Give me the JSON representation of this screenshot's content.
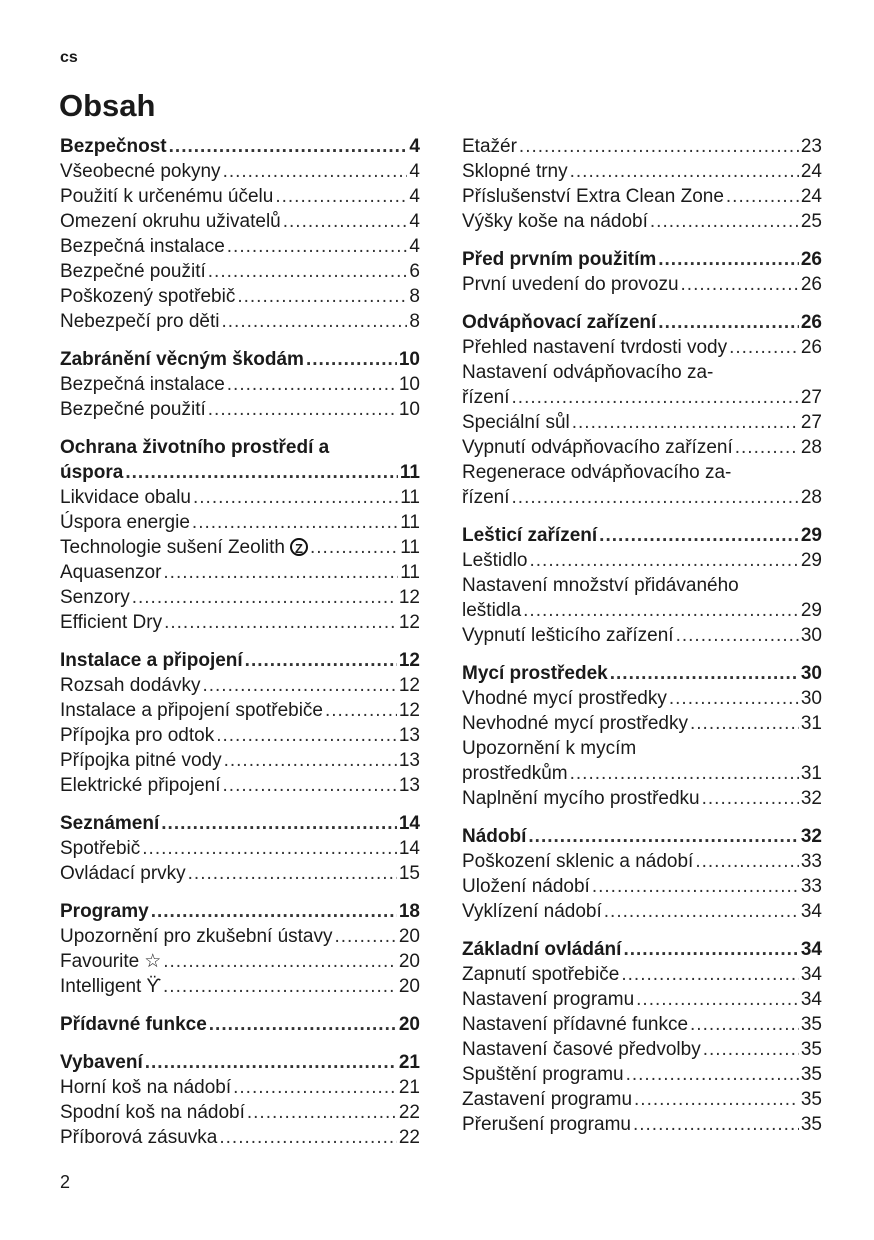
{
  "header": {
    "language": "cs",
    "title": "Obsah"
  },
  "footer": {
    "page_number": "2"
  },
  "columns": [
    {
      "groups": [
        {
          "heading": {
            "text": "Bezpečnost",
            "page": "4"
          },
          "items": [
            {
              "text": "Všeobecné pokyny",
              "page": "4"
            },
            {
              "text": "Použití k určenému účelu",
              "page": "4"
            },
            {
              "text": "Omezení okruhu uživatelů",
              "page": "4"
            },
            {
              "text": "Bezpečná instalace",
              "page": "4"
            },
            {
              "text": "Bezpečné použití",
              "page": "6"
            },
            {
              "text": "Poškozený spotřebič",
              "page": "8"
            },
            {
              "text": "Nebezpečí pro děti",
              "page": "8"
            }
          ]
        },
        {
          "heading": {
            "text": "Zabránění věcným škodám",
            "page": "10"
          },
          "items": [
            {
              "text": "Bezpečná instalace",
              "page": "10"
            },
            {
              "text": "Bezpečné použití",
              "page": "10"
            }
          ]
        },
        {
          "heading": {
            "text": "Ochrana životního prostředí a",
            "cont": "úspora",
            "page": "11"
          },
          "items": [
            {
              "text": "Likvidace obalu",
              "page": "11"
            },
            {
              "text": "Úspora energie",
              "page": "11"
            },
            {
              "text": "Technologie sušení Zeolith",
              "icon": "zeolith-icon",
              "page": "11"
            },
            {
              "text": "Aquasenzor",
              "page": "11"
            },
            {
              "text": "Senzory",
              "page": "12"
            },
            {
              "text": "Efficient Dry",
              "page": "12"
            }
          ]
        },
        {
          "heading": {
            "text": "Instalace a připojení",
            "page": "12"
          },
          "items": [
            {
              "text": "Rozsah dodávky",
              "page": "12"
            },
            {
              "text": "Instalace a připojení spotřebiče",
              "page": "12"
            },
            {
              "text": "Přípojka pro odtok",
              "page": "13"
            },
            {
              "text": "Přípojka pitné vody",
              "page": "13"
            },
            {
              "text": "Elektrické připojení",
              "page": "13"
            }
          ]
        },
        {
          "heading": {
            "text": "Seznámení",
            "page": "14"
          },
          "items": [
            {
              "text": "Spotřebič",
              "page": "14"
            },
            {
              "text": "Ovládací prvky",
              "page": "15"
            }
          ]
        },
        {
          "heading": {
            "text": "Programy",
            "page": "18"
          },
          "items": [
            {
              "text": "Upozornění pro zkušební ústavy",
              "page": "20"
            },
            {
              "text": "Favourite",
              "icon": "star-icon",
              "page": "20"
            },
            {
              "text": "Intelligent",
              "icon": "intelligent-icon",
              "page": "20"
            }
          ]
        },
        {
          "heading": {
            "text": "Přídavné funkce",
            "page": "20"
          },
          "items": []
        },
        {
          "heading": {
            "text": "Vybavení",
            "page": "21"
          },
          "items": [
            {
              "text": "Horní koš na nádobí",
              "page": "21"
            },
            {
              "text": "Spodní koš na nádobí",
              "page": "22"
            },
            {
              "text": "Příborová zásuvka",
              "page": "22"
            }
          ]
        }
      ]
    },
    {
      "groups": [
        {
          "items": [
            {
              "text": "Etažér",
              "page": "23"
            },
            {
              "text": "Sklopné trny",
              "page": "24"
            },
            {
              "text": "Příslušenství Extra Clean Zone",
              "page": "24"
            },
            {
              "text": "Výšky koše na nádobí",
              "page": "25"
            }
          ]
        },
        {
          "heading": {
            "text": "Před prvním použitím",
            "page": "26"
          },
          "items": [
            {
              "text": "První uvedení do provozu",
              "page": "26"
            }
          ]
        },
        {
          "heading": {
            "text": "Odvápňovací zařízení",
            "page": "26"
          },
          "items": [
            {
              "text": "Přehled nastavení tvrdosti vody",
              "page": "26"
            },
            {
              "text": "Nastavení odvápňovacího za-",
              "cont": "řízení",
              "page": "27"
            },
            {
              "text": "Speciální sůl",
              "page": "27"
            },
            {
              "text": "Vypnutí odvápňovacího zařízení",
              "page": "28"
            },
            {
              "text": "Regenerace odvápňovacího za-",
              "cont": "řízení",
              "page": "28"
            }
          ]
        },
        {
          "heading": {
            "text": "Lešticí zařízení",
            "page": "29"
          },
          "items": [
            {
              "text": "Leštidlo",
              "page": "29"
            },
            {
              "text": "Nastavení množství přidávaného",
              "cont": "leštidla",
              "page": "29"
            },
            {
              "text": "Vypnutí lešticího zařízení",
              "page": "30"
            }
          ]
        },
        {
          "heading": {
            "text": "Mycí prostředek",
            "page": "30"
          },
          "items": [
            {
              "text": "Vhodné mycí prostředky",
              "page": "30"
            },
            {
              "text": "Nevhodné mycí prostředky",
              "page": "31"
            },
            {
              "text": "Upozornění k mycím",
              "cont": "prostředkům",
              "page": "31"
            },
            {
              "text": "Naplnění mycího prostředku",
              "page": "32"
            }
          ]
        },
        {
          "heading": {
            "text": "Nádobí",
            "page": "32"
          },
          "items": [
            {
              "text": "Poškození sklenic a nádobí",
              "page": "33"
            },
            {
              "text": "Uložení nádobí",
              "page": "33"
            },
            {
              "text": "Vyklízení nádobí",
              "page": "34"
            }
          ]
        },
        {
          "heading": {
            "text": "Základní ovládání",
            "page": "34"
          },
          "items": [
            {
              "text": "Zapnutí spotřebiče",
              "page": "34"
            },
            {
              "text": "Nastavení programu",
              "page": "34"
            },
            {
              "text": "Nastavení přídavné funkce",
              "page": "35"
            },
            {
              "text": "Nastavení časové předvolby",
              "page": "35"
            },
            {
              "text": "Spuštění programu",
              "page": "35"
            },
            {
              "text": "Zastavení programu",
              "page": "35"
            },
            {
              "text": "Přerušení programu",
              "page": "35"
            }
          ]
        }
      ]
    }
  ]
}
